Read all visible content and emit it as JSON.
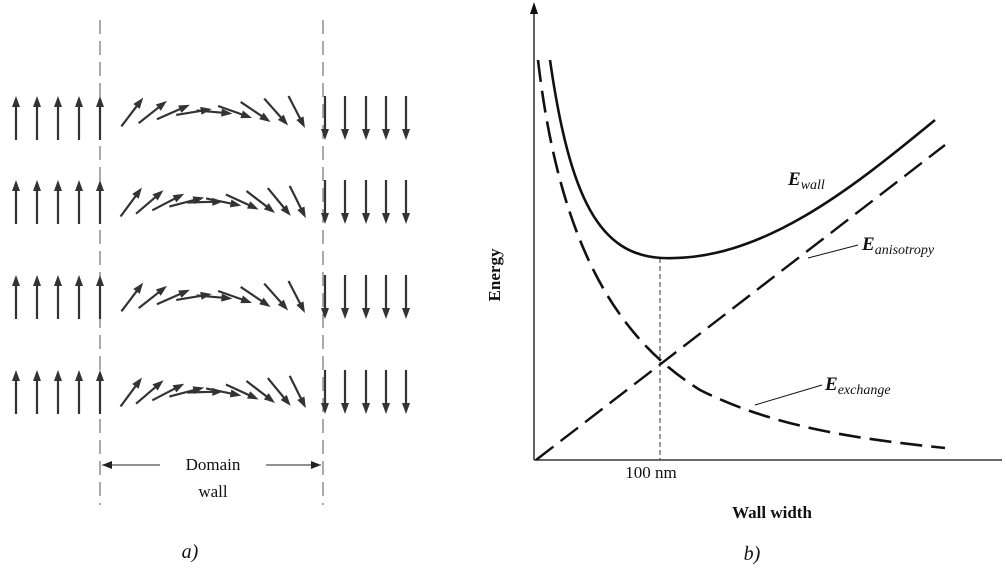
{
  "panel_a": {
    "wall_label": [
      "Domain",
      "wall"
    ],
    "caption": "a)"
  },
  "panel_b": {
    "y_axis_label": "Energy",
    "x_axis_label": "Wall width",
    "x_marker_label": "100 nm",
    "curves": [
      {
        "symbol": "E",
        "subscript": "wall"
      },
      {
        "symbol": "E",
        "subscript": "anisotropy"
      },
      {
        "symbol": "E",
        "subscript": "exchange"
      }
    ],
    "caption": "b)"
  }
}
